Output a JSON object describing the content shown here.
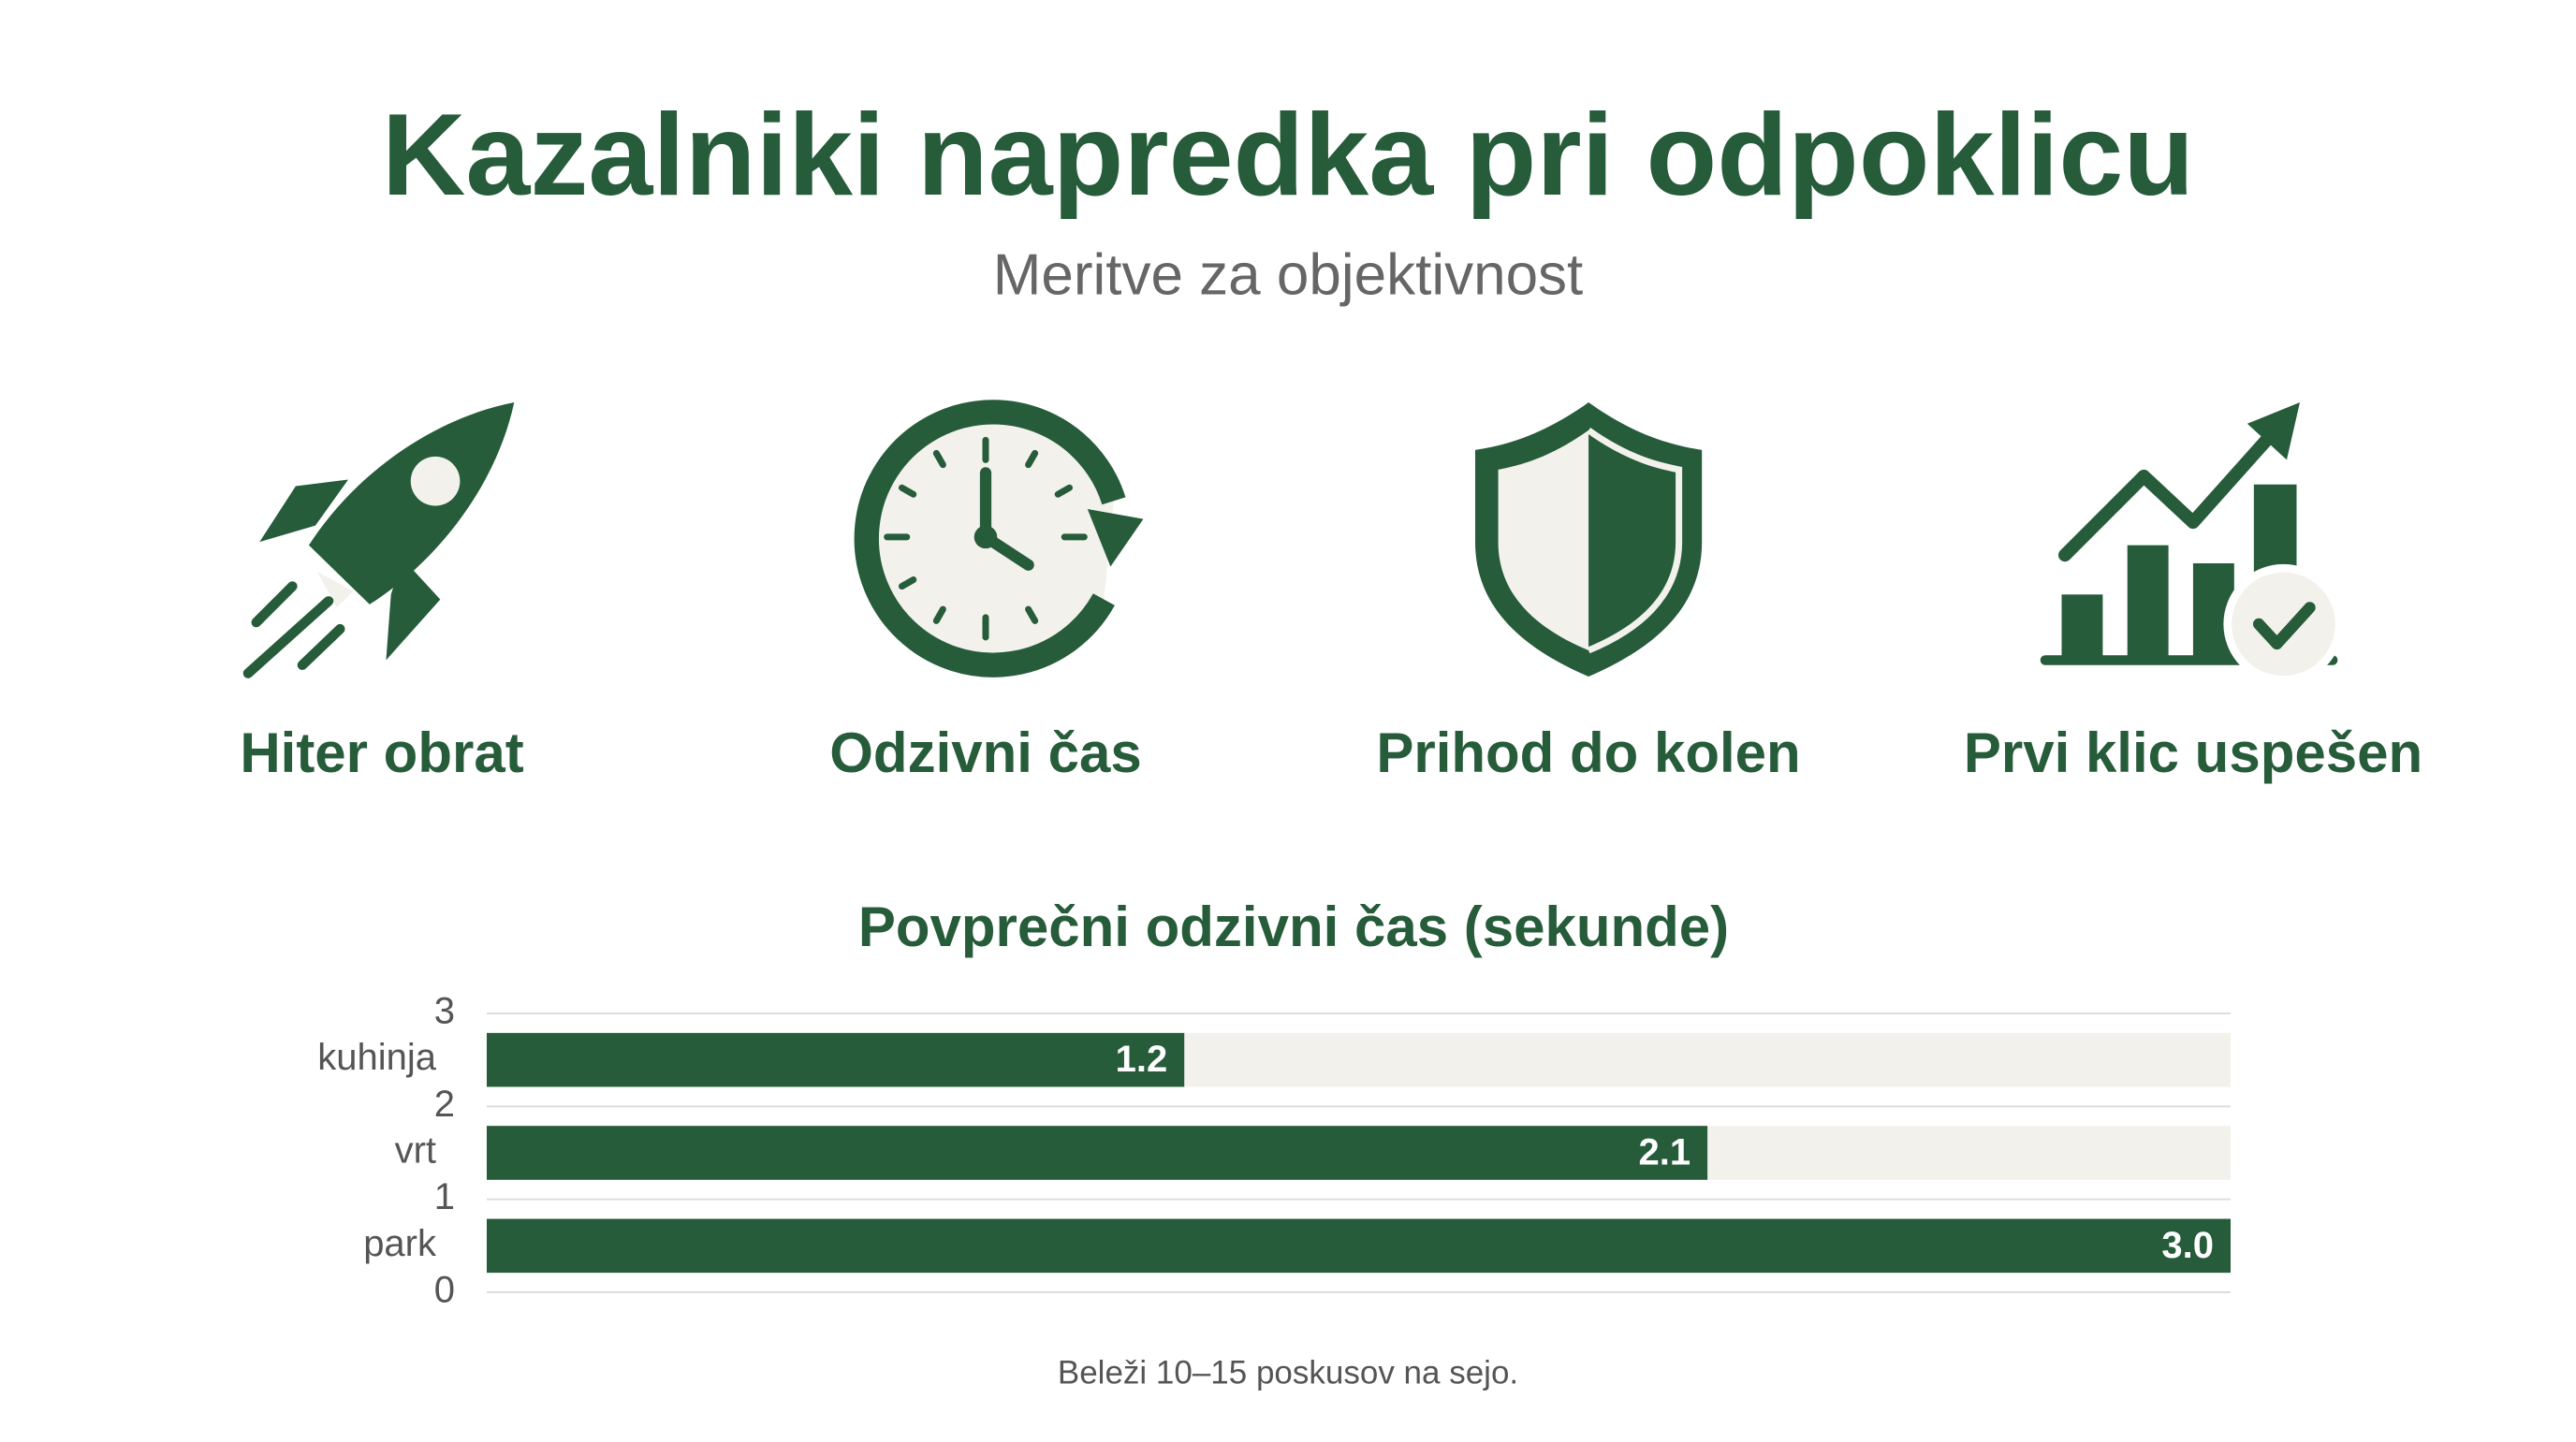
{
  "header": {
    "title": "Kazalniki napredka pri odpoklicu",
    "subtitle": "Meritve za objektivnost"
  },
  "metrics": [
    {
      "label": "Hiter obrat"
    },
    {
      "label": "Odzivni čas"
    },
    {
      "label": "Prihod do kolen"
    },
    {
      "label": "Prvi klic uspešen"
    }
  ],
  "chart_data": {
    "type": "bar",
    "orientation": "horizontal",
    "title": "Povprečni odzivni čas (sekunde)",
    "categories": [
      "kuhinja",
      "vrt",
      "park"
    ],
    "values": [
      1.2,
      2.1,
      3.0
    ],
    "value_labels": [
      "1.2",
      "2.1",
      "3.0"
    ],
    "color": "#265c3a",
    "xlim": [
      0,
      3
    ],
    "ylim": [
      0,
      3
    ],
    "yticks": [
      0,
      1,
      2,
      3
    ],
    "grid": true
  },
  "footnote": "Beleži 10–15 poskusov na sejo."
}
